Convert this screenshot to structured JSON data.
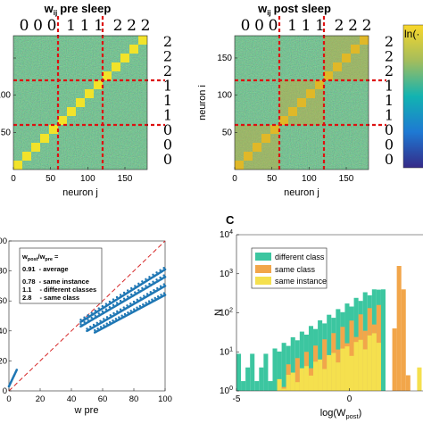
{
  "panel_a": {
    "title": "w",
    "title_sub": "ij",
    "title_rest": "pre sleep",
    "xlabel": "neuron j",
    "digit_label_rows": [
      "2",
      "2",
      "2",
      "1",
      "1",
      "1",
      "0",
      "0",
      "0"
    ],
    "digit_label_top": [
      "0",
      "0",
      "0",
      "1",
      "1",
      "1",
      "2",
      "2",
      "2"
    ]
  },
  "panel_b": {
    "title": "w",
    "title_sub": "ij",
    "title_rest": "post sleep",
    "xlabel": "neuron j",
    "ylabel": "neuron i",
    "digit_label_rows": [
      "2",
      "2",
      "2",
      "1",
      "1",
      "1",
      "0",
      "0",
      "0"
    ],
    "digit_label_top": [
      "0",
      "0",
      "0",
      "1",
      "1",
      "1",
      "2",
      "2",
      "2"
    ],
    "colorbar_label": "ln(·"
  },
  "panel_scatter": {
    "xlabel": "w pre",
    "legend_title_num": "w",
    "legend_title_num_sub": "post",
    "legend_title_den": "w",
    "legend_title_den_sub": "pre",
    "legend_title_eq": "=",
    "legend_rows": [
      {
        "value": "0.91",
        "text": "- average"
      },
      {
        "value": "0.78",
        "text": "- same instance"
      },
      {
        "value": "1.1",
        "text": "- different classes"
      },
      {
        "value": "2.8",
        "text": "- same class"
      }
    ]
  },
  "panel_c": {
    "letter": "C",
    "xlabel": "log(W",
    "xlabel_sub": "post",
    "xlabel_end": ")",
    "ylabel": "N"
  },
  "colors": {
    "matrix_bg": "#4aa26d",
    "block": "#f2e32a",
    "block_post": "#e0b828",
    "divider": "#dd1111",
    "scatter": "#1f77b4",
    "diag": "#d62728",
    "different_class": "#3cc6a0",
    "same_class": "#f2a64a",
    "same_instance": "#f5e04e"
  },
  "chart_data": [
    {
      "type": "heatmap",
      "title": "wij pre sleep",
      "xlabel": "neuron j",
      "ylabel": "",
      "xticks": [
        0,
        50,
        100,
        150
      ],
      "yticks": [
        0,
        50,
        100,
        150
      ],
      "xlim": [
        0,
        180
      ],
      "ylim": [
        0,
        180
      ],
      "class_boundaries": [
        60,
        120
      ],
      "blocks": [
        [
          0,
          12
        ],
        [
          12,
          24
        ],
        [
          24,
          36
        ],
        [
          36,
          48
        ],
        [
          48,
          60
        ],
        [
          60,
          72
        ],
        [
          72,
          84
        ],
        [
          84,
          96
        ],
        [
          96,
          108
        ],
        [
          108,
          120
        ],
        [
          120,
          132
        ],
        [
          132,
          144
        ],
        [
          144,
          156
        ],
        [
          156,
          168
        ],
        [
          168,
          180
        ]
      ]
    },
    {
      "type": "heatmap",
      "title": "wij post sleep",
      "xlabel": "neuron j",
      "ylabel": "neuron i",
      "xticks": [
        0,
        50,
        100,
        150
      ],
      "yticks": [
        0,
        50,
        100,
        150
      ],
      "xlim": [
        0,
        180
      ],
      "ylim": [
        0,
        180
      ],
      "class_boundaries": [
        60,
        120
      ],
      "colorbar_label": "ln(·"
    },
    {
      "type": "scatter",
      "xlabel": "w pre",
      "ylabel": "",
      "xticks": [
        0,
        20,
        40,
        60,
        80,
        100
      ],
      "yticks": [
        0,
        20,
        40,
        60,
        80,
        100
      ],
      "xlim": [
        0,
        100
      ],
      "ylim": [
        0,
        100
      ],
      "ratios": [
        {
          "label": "average",
          "value": 0.91
        },
        {
          "label": "same instance",
          "value": 0.78
        },
        {
          "label": "different classes",
          "value": 1.1
        },
        {
          "label": "same class",
          "value": 2.8
        }
      ],
      "series": [
        {
          "values_x": [
            46,
            100
          ],
          "values_y": [
            46,
            81
          ]
        },
        {
          "values_x": [
            46,
            100
          ],
          "values_y": [
            43,
            76
          ]
        },
        {
          "values_x": [
            50,
            100
          ],
          "values_y": [
            40,
            70
          ]
        },
        {
          "values_x": [
            55,
            100
          ],
          "values_y": [
            39,
            64
          ]
        },
        {
          "values_x": [
            0,
            5
          ],
          "values_y": [
            3,
            14
          ]
        }
      ]
    },
    {
      "type": "bar",
      "title": "C",
      "xlabel": "log(Wpost)",
      "ylabel": "N",
      "xticks": [
        -5,
        0
      ],
      "yticks_log": [
        0,
        1,
        2,
        3,
        4
      ],
      "xlim": [
        -5,
        3.3
      ],
      "series": [
        {
          "name": "different class"
        },
        {
          "name": "same class"
        },
        {
          "name": "same instance"
        }
      ]
    }
  ]
}
